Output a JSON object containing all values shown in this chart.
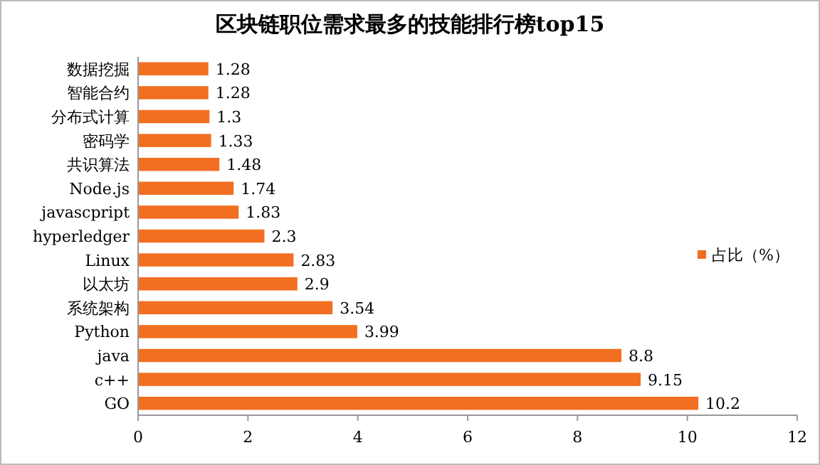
{
  "chart_data": {
    "type": "bar",
    "orientation": "horizontal",
    "title": "区块链职位需求最多的技能排行榜top15",
    "categories": [
      "数据挖掘",
      "智能合约",
      "分布式计算",
      "密码学",
      "共识算法",
      "Node.js",
      "javascpript",
      "hyperledger",
      "Linux",
      "以太坊",
      "系统架构",
      "Python",
      "java",
      "c++",
      "GO"
    ],
    "series": [
      {
        "name": "占比（%）",
        "color": "#f26f21",
        "values": [
          1.28,
          1.28,
          1.3,
          1.33,
          1.48,
          1.74,
          1.83,
          2.3,
          2.83,
          2.9,
          3.54,
          3.99,
          8.8,
          9.15,
          10.2
        ]
      }
    ],
    "xlim": [
      0,
      12
    ],
    "xticks": [
      0,
      2,
      4,
      6,
      8,
      10,
      12
    ],
    "data_labels": true,
    "legend": "right",
    "grid": false
  }
}
